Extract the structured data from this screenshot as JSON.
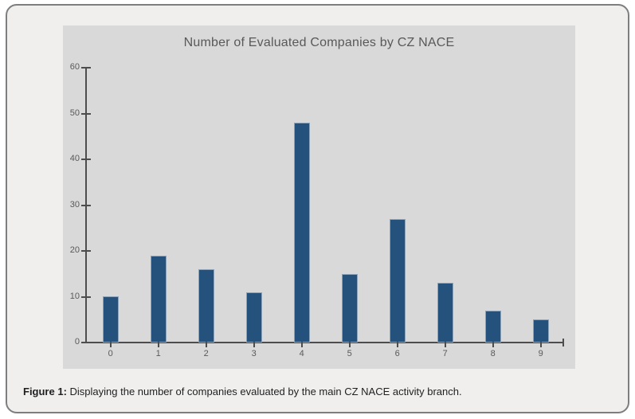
{
  "figure": {
    "caption_label": "Figure 1:",
    "caption_text": " Displaying the number of companies evaluated by the main CZ NACE activity branch."
  },
  "chart_data": {
    "type": "bar",
    "title": "Number of Evaluated Companies by CZ NACE",
    "categories": [
      "0",
      "1",
      "2",
      "3",
      "4",
      "5",
      "6",
      "7",
      "8",
      "9"
    ],
    "values": [
      10,
      19,
      16,
      11,
      48,
      15,
      27,
      13,
      7,
      5
    ],
    "xlabel": "",
    "ylabel": "",
    "ylim": [
      0,
      60
    ],
    "ytick_step": 10,
    "ytick_labels": [
      "0",
      "10",
      "20",
      "30",
      "40",
      "50",
      "60"
    ],
    "grid": false,
    "legend": false,
    "colors": {
      "bar": "#25527D",
      "bar_edge": "rgba(222,230,238,0.55)",
      "plot_background": "#D9D9D9",
      "panel_background": "#F0EFEE",
      "panel_border": "#7E7E7E",
      "axis": "#4D4D4D",
      "tick_labels": "#595959",
      "title": "#595959",
      "caption_text": "#1F1F1F"
    }
  }
}
